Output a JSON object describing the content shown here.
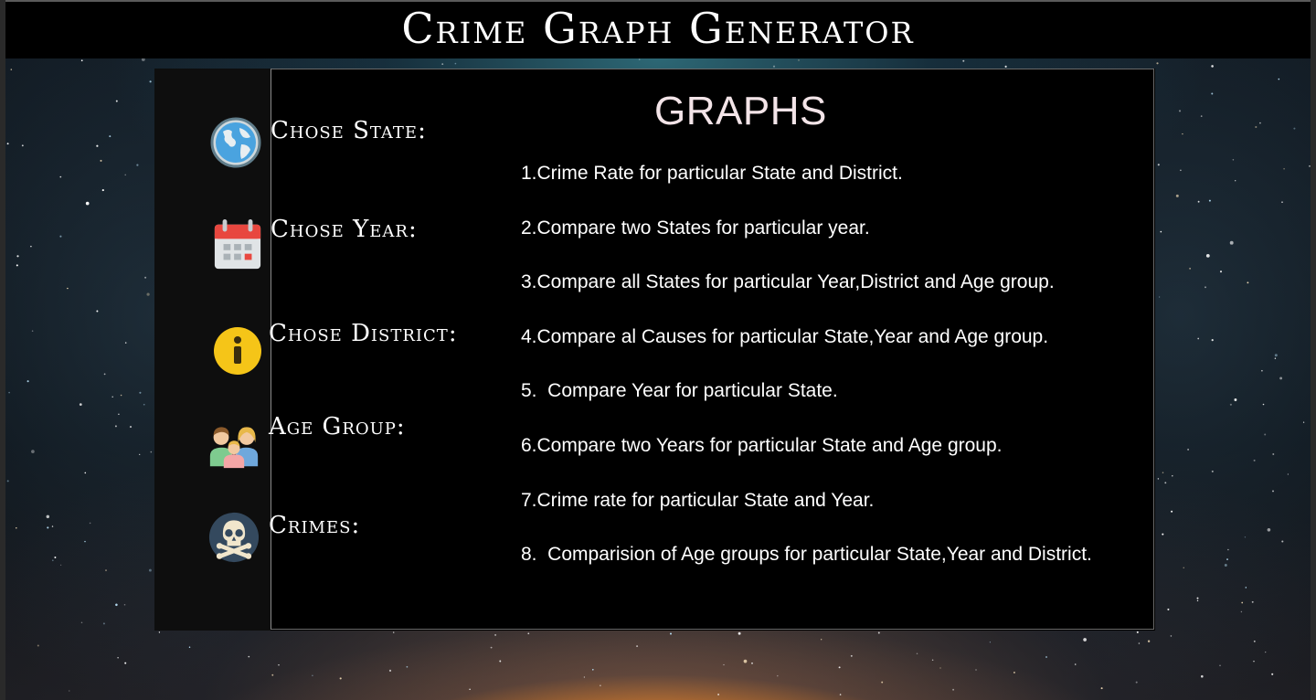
{
  "app": {
    "title": "Crime Graph Generator"
  },
  "filters": [
    {
      "label": "Chose State:",
      "icon": "globe-icon"
    },
    {
      "label": "Chose Year:",
      "icon": "calendar-icon"
    },
    {
      "label": "Chose District:",
      "icon": "info-icon"
    },
    {
      "label": "Age Group:",
      "icon": "family-icon"
    },
    {
      "label": "Crimes:",
      "icon": "skull-crossbones-icon"
    }
  ],
  "graphs": {
    "heading": "GRAPHS",
    "items": [
      "1.Crime Rate for particular State and District.",
      "2.Compare two States for particular year.",
      "3.Compare all States for particular Year,District and Age group.",
      "4.Compare al Causes for particular State,Year and Age group.",
      "5.  Compare Year for particular State.",
      "6.Compare two Years for particular State and Age group.",
      "7.Crime rate for particular State and Year.",
      "8.  Comparision of Age groups for particular State,Year and District."
    ]
  },
  "colors": {
    "title_bar": "#000000",
    "panel": "#000000",
    "heading": "#f3e4e8",
    "info_icon": "#f5c518",
    "calendar_header": "#e8473f",
    "skull_bg": "#34495e"
  }
}
